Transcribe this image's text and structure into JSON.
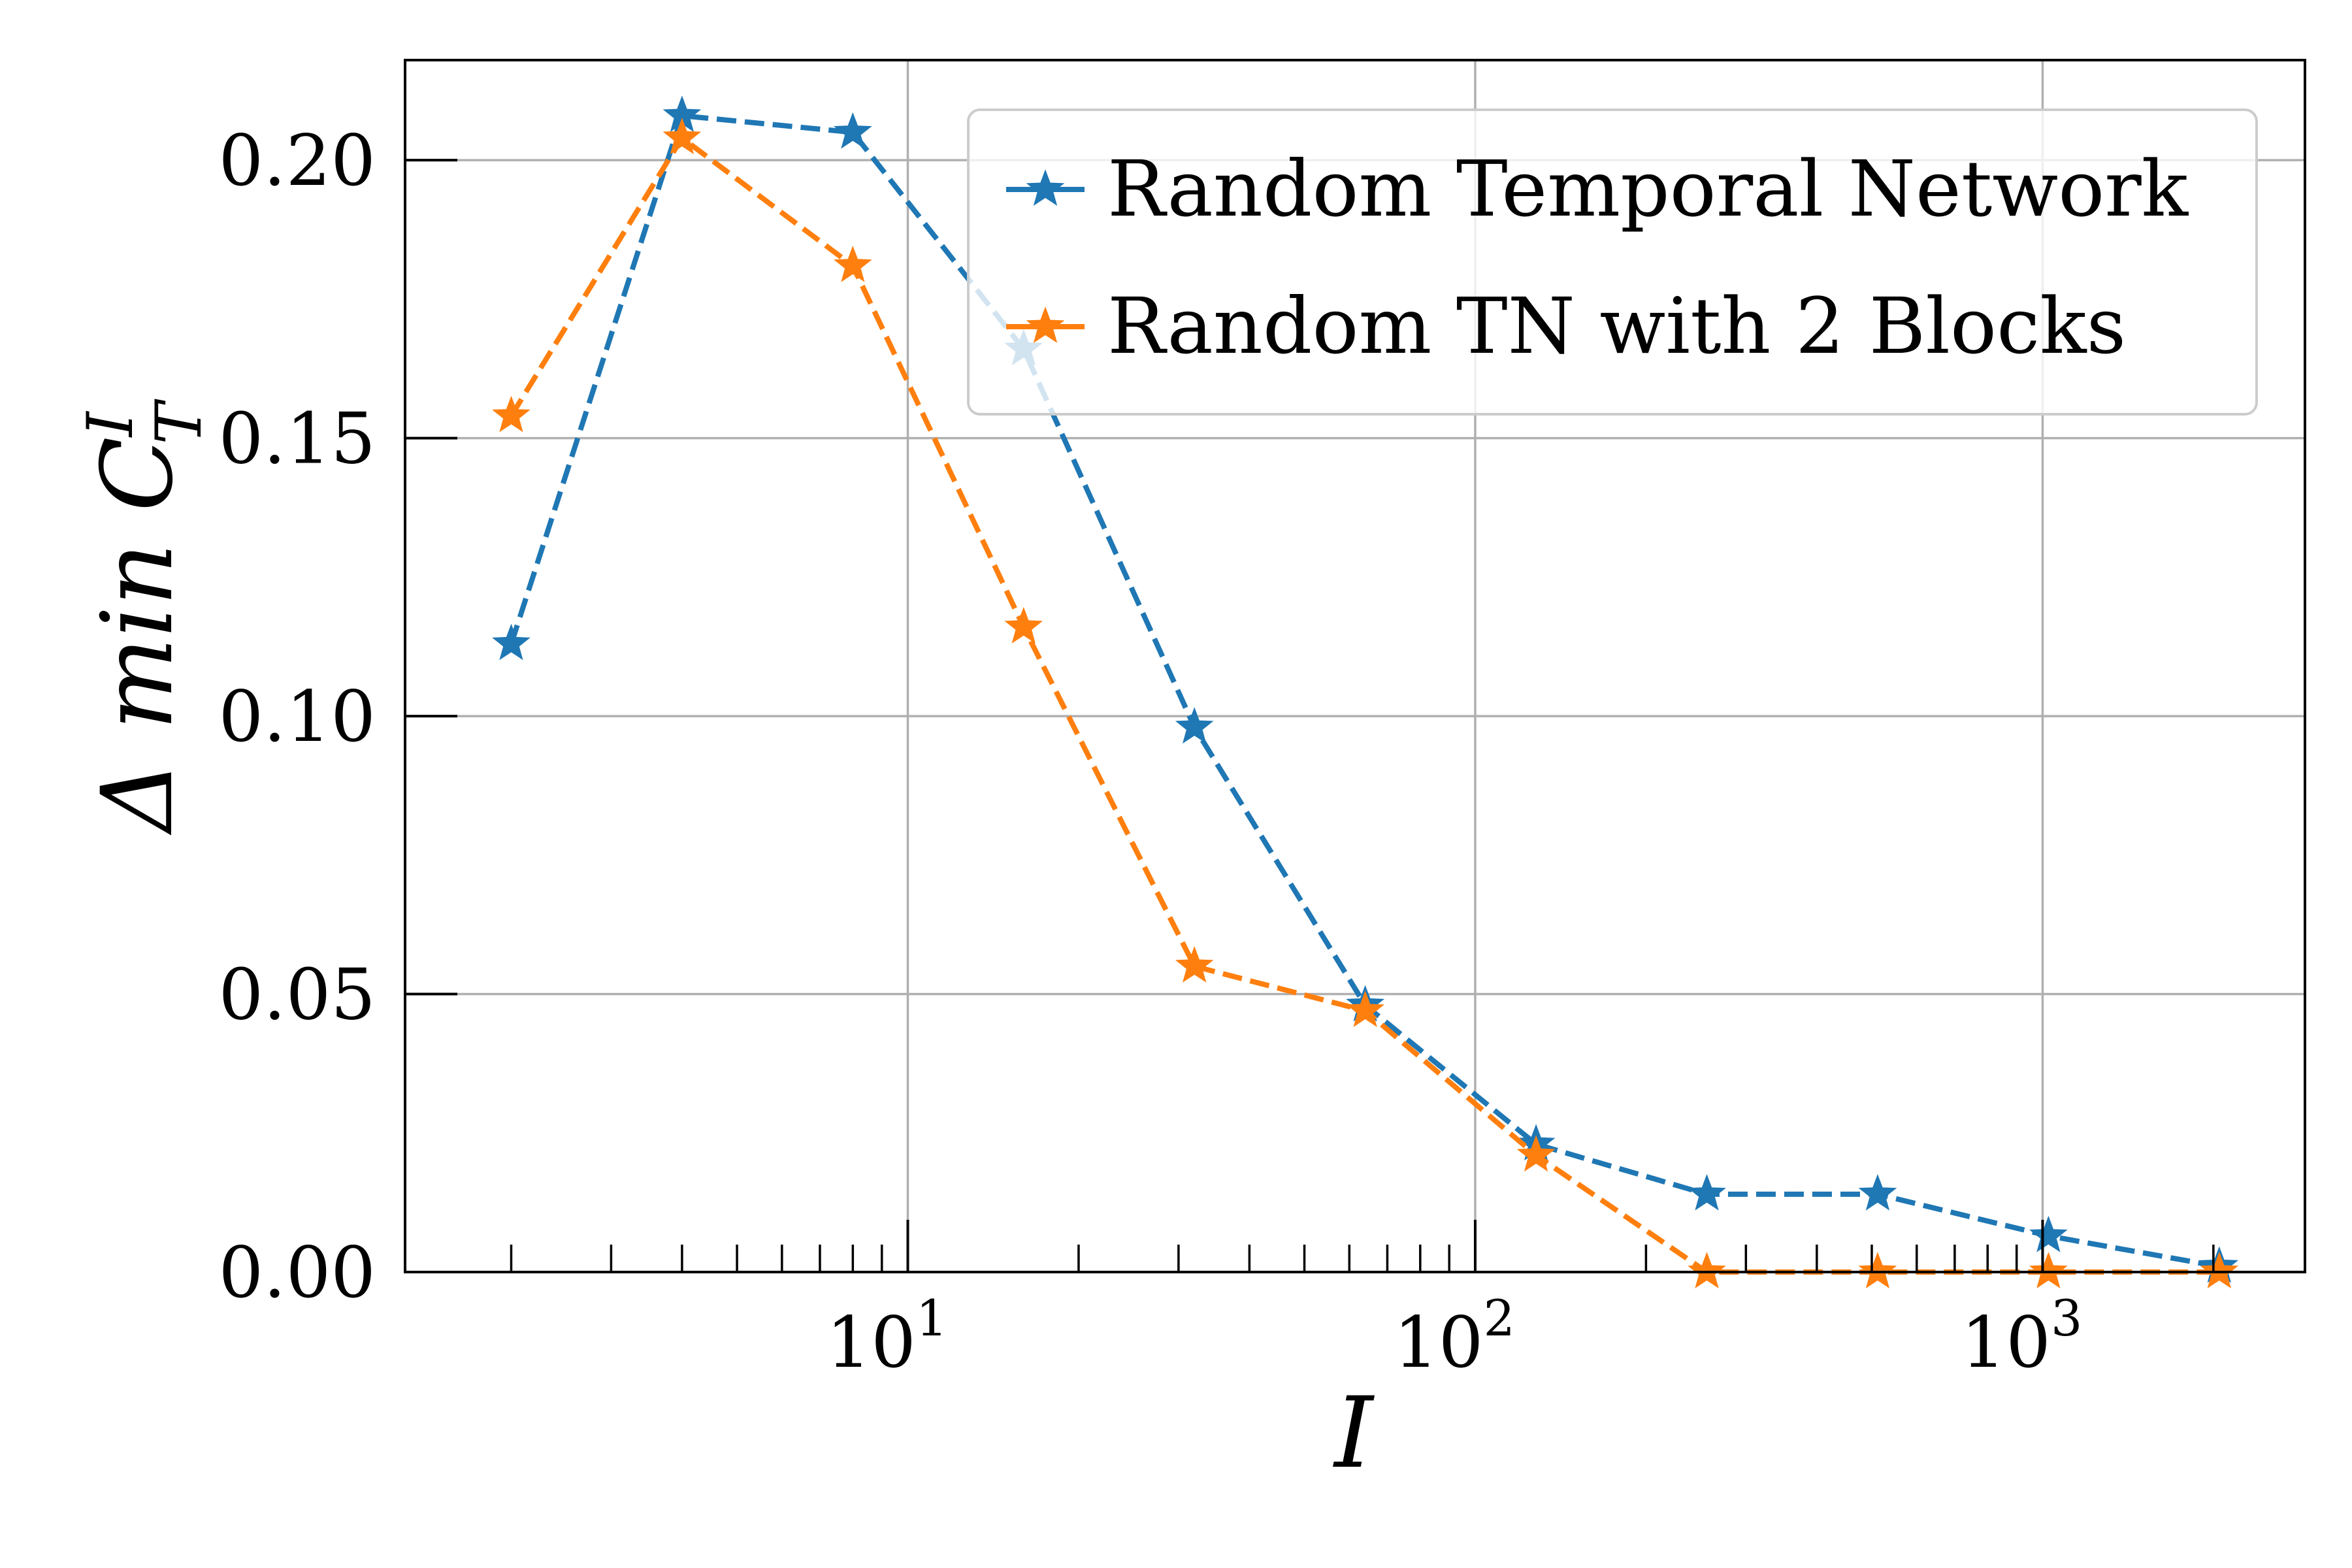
{
  "chart_data": {
    "type": "line",
    "xscale": "log",
    "xlim": [
      1.3,
      2900
    ],
    "ylim": [
      0.0,
      0.218
    ],
    "xlabel": "I",
    "ylabel": {
      "main": "Δ min C",
      "superscript": "I",
      "subscript": "T"
    },
    "xticks": [
      {
        "base": "10",
        "exp": "1",
        "value": 10
      },
      {
        "base": "10",
        "exp": "2",
        "value": 100
      },
      {
        "base": "10",
        "exp": "3",
        "value": 1000
      }
    ],
    "yticks": [
      "0.00",
      "0.05",
      "0.10",
      "0.15",
      "0.20"
    ],
    "grid": true,
    "legend_position": "top-right",
    "series": [
      {
        "name": "Random Temporal Network",
        "color": "#1f77b4",
        "linestyle": "dashed",
        "marker": "star",
        "x": [
          2,
          4,
          8,
          16,
          32,
          64,
          128,
          256,
          512,
          1024,
          2048
        ],
        "y": [
          0.113,
          0.208,
          0.205,
          0.166,
          0.098,
          0.048,
          0.023,
          0.014,
          0.014,
          0.0065,
          0.001
        ]
      },
      {
        "name": "Random TN with 2 Blocks",
        "color": "#ff7f0e",
        "linestyle": "dashed",
        "marker": "star",
        "x": [
          2,
          4,
          8,
          16,
          32,
          64,
          128,
          256,
          512,
          1024,
          2048
        ],
        "y": [
          0.154,
          0.204,
          0.181,
          0.116,
          0.055,
          0.047,
          0.021,
          0.0,
          0.0,
          0.0,
          0.0
        ]
      }
    ]
  }
}
